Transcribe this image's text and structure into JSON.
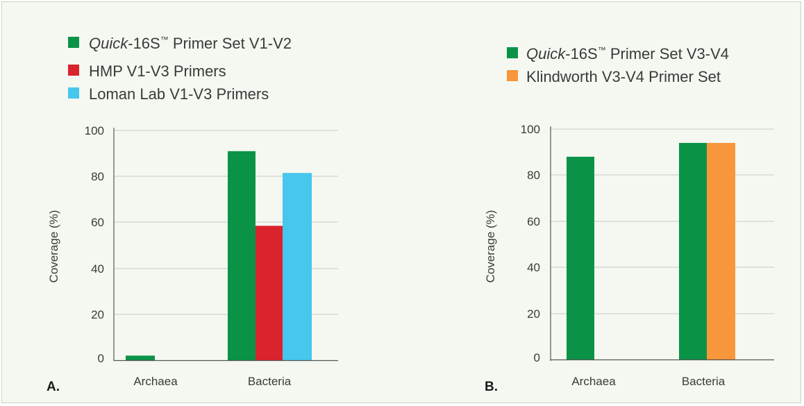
{
  "colors": {
    "quick": "#0a9347",
    "hmp": "#d9232d",
    "loman": "#47c6ee",
    "klindworth": "#f7963a",
    "grid": "#c8c8c8",
    "axis": "#555555"
  },
  "chart_data": [
    {
      "type": "bar",
      "panel_label": "A.",
      "categories": [
        "Archaea",
        "Bacteria"
      ],
      "ylabel": "Coverage (%)",
      "ylim": [
        0,
        100
      ],
      "yticks": [
        "0",
        "20",
        "40",
        "60",
        "80",
        "100"
      ],
      "grid": true,
      "legend_position": "top",
      "series": [
        {
          "name_prefix": "Quick",
          "name_suffix": "-16S",
          "name_mark": "™",
          "name_rest": " Primer Set V1-V2",
          "color": "#0a9347",
          "values": [
            2,
            91
          ]
        },
        {
          "name": "HMP V1-V3 Primers",
          "color": "#d9232d",
          "values": [
            0,
            58.5
          ]
        },
        {
          "name": "Loman Lab V1-V3 Primers",
          "color": "#47c6ee",
          "values": [
            0,
            81.5
          ]
        }
      ]
    },
    {
      "type": "bar",
      "panel_label": "B.",
      "categories": [
        "Archaea",
        "Bacteria"
      ],
      "ylabel": "Coverage (%)",
      "ylim": [
        0,
        100
      ],
      "yticks": [
        "0",
        "20",
        "40",
        "60",
        "80",
        "100"
      ],
      "grid": true,
      "legend_position": "top",
      "series": [
        {
          "name_prefix": "Quick",
          "name_suffix": "-16S",
          "name_mark": "™",
          "name_rest": " Primer Set V3-V4",
          "color": "#0a9347",
          "values": [
            88,
            94
          ]
        },
        {
          "name": "Klindworth V3-V4 Primer Set",
          "color": "#f7963a",
          "values": [
            0,
            94
          ]
        }
      ]
    }
  ]
}
